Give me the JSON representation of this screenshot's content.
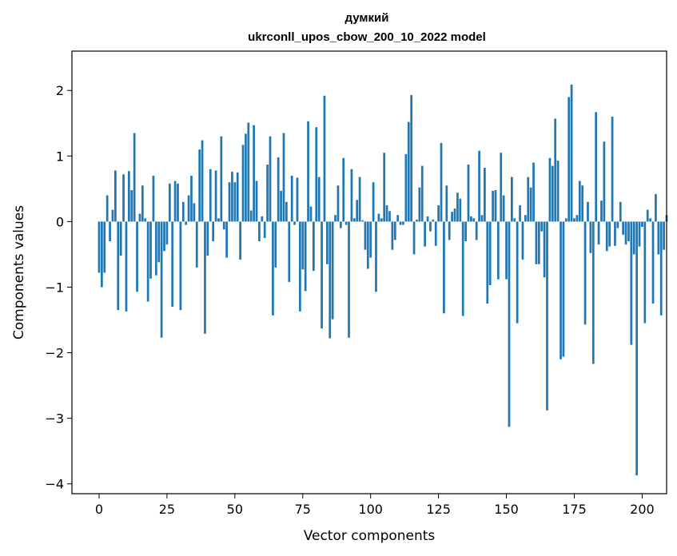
{
  "chart_data": {
    "type": "bar",
    "title": "думкий",
    "subtitle": "ukrconll_upos_cbow_200_10_2022 model",
    "xlabel": "Vector components",
    "ylabel": "Components values",
    "xlim": [
      -10,
      209
    ],
    "ylim": [
      -4.15,
      2.6
    ],
    "xticks": [
      0,
      25,
      50,
      75,
      100,
      125,
      150,
      175,
      200
    ],
    "yticks": [
      2,
      1,
      0,
      -1,
      -2,
      -3,
      -4
    ],
    "ytick_labels": [
      "2",
      "1",
      "0",
      "−1",
      "−2",
      "−3",
      "−4"
    ],
    "bar_color": "#1f77b4",
    "grid": false,
    "values": [
      -0.78,
      -1.0,
      -0.78,
      0.4,
      -0.3,
      0.18,
      0.78,
      -1.35,
      -0.52,
      0.72,
      -1.37,
      0.77,
      0.48,
      1.35,
      -1.07,
      0.12,
      0.55,
      0.05,
      -1.22,
      -0.87,
      0.7,
      -0.82,
      -0.62,
      -1.77,
      -0.45,
      -0.35,
      0.58,
      -1.3,
      0.62,
      0.58,
      -1.35,
      0.3,
      -0.05,
      0.4,
      0.7,
      0.28,
      -0.7,
      1.1,
      1.24,
      -1.71,
      -0.52,
      0.8,
      -0.3,
      0.78,
      0.05,
      1.3,
      -0.12,
      -0.55,
      0.6,
      0.76,
      0.6,
      0.75,
      -0.58,
      1.17,
      1.34,
      1.51,
      0.17,
      1.47,
      0.62,
      -0.3,
      0.08,
      -0.25,
      0.87,
      1.3,
      -1.43,
      -0.7,
      0.98,
      0.47,
      1.35,
      0.3,
      -0.92,
      0.7,
      -0.05,
      0.67,
      -1.37,
      -0.73,
      -1.06,
      1.53,
      0.23,
      -0.75,
      1.44,
      0.68,
      -1.63,
      1.92,
      -0.65,
      -1.78,
      -1.49,
      0.1,
      0.55,
      -0.1,
      0.97,
      -0.05,
      -1.77,
      0.8,
      0.05,
      0.33,
      0.68,
      0.02,
      -0.43,
      -0.72,
      -0.55,
      0.6,
      -1.07,
      0.12,
      0.05,
      1.05,
      0.25,
      0.16,
      -0.43,
      -0.28,
      0.1,
      -0.05,
      -0.05,
      1.03,
      1.52,
      1.93,
      -0.5,
      0.03,
      0.52,
      0.85,
      -0.38,
      0.08,
      -0.15,
      0.03,
      -0.37,
      0.25,
      1.2,
      -1.4,
      0.55,
      -0.28,
      0.15,
      0.2,
      0.44,
      0.35,
      -1.44,
      -0.3,
      0.87,
      0.08,
      0.05,
      -0.28,
      1.08,
      0.1,
      0.82,
      -1.25,
      -0.97,
      0.47,
      0.48,
      -0.88,
      1.05,
      0.4,
      -0.88,
      -3.13,
      0.68,
      0.05,
      -1.55,
      0.25,
      -0.58,
      0.1,
      0.68,
      0.52,
      0.9,
      -0.65,
      -0.65,
      -0.15,
      -0.85,
      -2.88,
      0.97,
      0.85,
      1.57,
      0.93,
      -2.1,
      -2.06,
      0.05,
      1.9,
      2.09,
      0.05,
      0.1,
      0.62,
      0.55,
      -1.57,
      0.3,
      -0.48,
      -2.17,
      1.67,
      -0.35,
      0.32,
      1.22,
      -0.45,
      -0.38,
      1.6,
      -0.37,
      -0.1,
      0.3,
      -0.2,
      -0.35,
      -0.3,
      -1.88,
      -0.5,
      -3.87,
      -0.38,
      -0.08,
      -1.55,
      0.18,
      0.05,
      -1.25,
      0.42,
      -0.5,
      -1.43,
      -0.43,
      0.1
    ]
  }
}
